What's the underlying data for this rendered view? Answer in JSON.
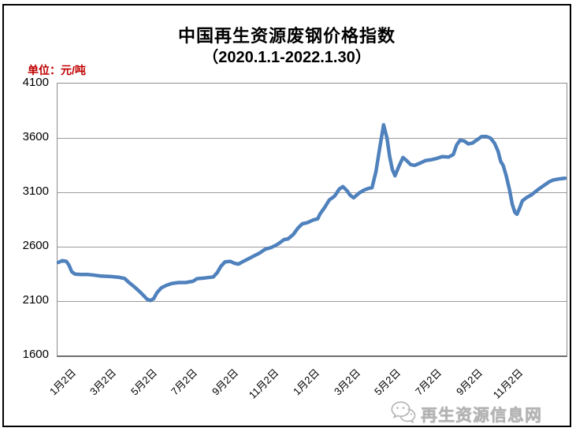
{
  "page": {
    "title": "中国再生资源废钢价格指数",
    "subtitle": "（2020.1.1-2022.1.30）",
    "unit_label": "单位：元/吨",
    "watermark_text": "再生资源信息网",
    "watermark_icon": "wechat-icon",
    "accent_red": "#c00000",
    "watermark_gray": "#b3b3b3"
  },
  "chart_data": {
    "type": "line",
    "title": "中国再生资源废钢价格指数",
    "subtitle": "（2020.1.1-2022.1.30）",
    "ylabel": "元/吨",
    "ylim": [
      1600,
      4100
    ],
    "y_ticks": [
      4100,
      3600,
      3100,
      2600,
      2100,
      1600
    ],
    "x_ticks": [
      {
        "label": "1月2日",
        "month": 0
      },
      {
        "label": "3月2日",
        "month": 2
      },
      {
        "label": "5月2日",
        "month": 4
      },
      {
        "label": "7月2日",
        "month": 6
      },
      {
        "label": "9月2日",
        "month": 8
      },
      {
        "label": "11月2日",
        "month": 10
      },
      {
        "label": "1月2日",
        "month": 12
      },
      {
        "label": "3月2日",
        "month": 14
      },
      {
        "label": "5月2日",
        "month": 16
      },
      {
        "label": "7月2日",
        "month": 18
      },
      {
        "label": "9月2日",
        "month": 20
      },
      {
        "label": "11月2日",
        "month": 22
      }
    ],
    "grid": "horizontal",
    "legend": "none",
    "line_color": "#4F81BD",
    "line_width": 4.5,
    "series": [
      {
        "name": "废钢价格指数",
        "points": [
          {
            "date": "2020-01-02",
            "value": 2455
          },
          {
            "date": "2020-01-08",
            "value": 2472
          },
          {
            "date": "2020-01-14",
            "value": 2465
          },
          {
            "date": "2020-01-18",
            "value": 2430
          },
          {
            "date": "2020-01-22",
            "value": 2370
          },
          {
            "date": "2020-01-27",
            "value": 2348
          },
          {
            "date": "2020-02-05",
            "value": 2345
          },
          {
            "date": "2020-02-15",
            "value": 2345
          },
          {
            "date": "2020-02-26",
            "value": 2338
          },
          {
            "date": "2020-03-05",
            "value": 2330
          },
          {
            "date": "2020-03-20",
            "value": 2325
          },
          {
            "date": "2020-04-02",
            "value": 2318
          },
          {
            "date": "2020-04-10",
            "value": 2308
          },
          {
            "date": "2020-04-17",
            "value": 2268
          },
          {
            "date": "2020-04-25",
            "value": 2228
          },
          {
            "date": "2020-05-02",
            "value": 2188
          },
          {
            "date": "2020-05-08",
            "value": 2150
          },
          {
            "date": "2020-05-13",
            "value": 2118
          },
          {
            "date": "2020-05-18",
            "value": 2105
          },
          {
            "date": "2020-05-23",
            "value": 2122
          },
          {
            "date": "2020-05-28",
            "value": 2178
          },
          {
            "date": "2020-06-04",
            "value": 2222
          },
          {
            "date": "2020-06-12",
            "value": 2246
          },
          {
            "date": "2020-06-20",
            "value": 2262
          },
          {
            "date": "2020-06-30",
            "value": 2270
          },
          {
            "date": "2020-07-10",
            "value": 2270
          },
          {
            "date": "2020-07-21",
            "value": 2282
          },
          {
            "date": "2020-07-27",
            "value": 2306
          },
          {
            "date": "2020-08-08",
            "value": 2312
          },
          {
            "date": "2020-08-21",
            "value": 2322
          },
          {
            "date": "2020-08-27",
            "value": 2362
          },
          {
            "date": "2020-09-02",
            "value": 2420
          },
          {
            "date": "2020-09-08",
            "value": 2460
          },
          {
            "date": "2020-09-16",
            "value": 2465
          },
          {
            "date": "2020-09-22",
            "value": 2448
          },
          {
            "date": "2020-09-28",
            "value": 2440
          },
          {
            "date": "2020-10-06",
            "value": 2468
          },
          {
            "date": "2020-10-13",
            "value": 2490
          },
          {
            "date": "2020-10-20",
            "value": 2512
          },
          {
            "date": "2020-10-29",
            "value": 2540
          },
          {
            "date": "2020-11-07",
            "value": 2575
          },
          {
            "date": "2020-11-16",
            "value": 2592
          },
          {
            "date": "2020-11-24",
            "value": 2615
          },
          {
            "date": "2020-11-30",
            "value": 2640
          },
          {
            "date": "2020-12-05",
            "value": 2665
          },
          {
            "date": "2020-12-11",
            "value": 2672
          },
          {
            "date": "2020-12-19",
            "value": 2712
          },
          {
            "date": "2020-12-26",
            "value": 2772
          },
          {
            "date": "2021-01-02",
            "value": 2810
          },
          {
            "date": "2021-01-10",
            "value": 2822
          },
          {
            "date": "2021-01-18",
            "value": 2845
          },
          {
            "date": "2021-01-25",
            "value": 2856
          },
          {
            "date": "2021-01-29",
            "value": 2905
          },
          {
            "date": "2021-02-05",
            "value": 2960
          },
          {
            "date": "2021-02-12",
            "value": 3030
          },
          {
            "date": "2021-02-20",
            "value": 3065
          },
          {
            "date": "2021-02-27",
            "value": 3130
          },
          {
            "date": "2021-03-02",
            "value": 3152
          },
          {
            "date": "2021-03-08",
            "value": 3115
          },
          {
            "date": "2021-03-13",
            "value": 3072
          },
          {
            "date": "2021-03-18",
            "value": 3050
          },
          {
            "date": "2021-03-26",
            "value": 3092
          },
          {
            "date": "2021-04-03",
            "value": 3120
          },
          {
            "date": "2021-04-10",
            "value": 3136
          },
          {
            "date": "2021-04-15",
            "value": 3142
          },
          {
            "date": "2021-04-21",
            "value": 3290
          },
          {
            "date": "2021-04-27",
            "value": 3520
          },
          {
            "date": "2021-05-02",
            "value": 3720
          },
          {
            "date": "2021-05-07",
            "value": 3600
          },
          {
            "date": "2021-05-11",
            "value": 3430
          },
          {
            "date": "2021-05-15",
            "value": 3310
          },
          {
            "date": "2021-05-19",
            "value": 3252
          },
          {
            "date": "2021-05-25",
            "value": 3340
          },
          {
            "date": "2021-05-31",
            "value": 3420
          },
          {
            "date": "2021-06-06",
            "value": 3392
          },
          {
            "date": "2021-06-12",
            "value": 3355
          },
          {
            "date": "2021-06-18",
            "value": 3348
          },
          {
            "date": "2021-06-26",
            "value": 3368
          },
          {
            "date": "2021-07-04",
            "value": 3392
          },
          {
            "date": "2021-07-13",
            "value": 3400
          },
          {
            "date": "2021-07-21",
            "value": 3412
          },
          {
            "date": "2021-07-29",
            "value": 3428
          },
          {
            "date": "2021-08-08",
            "value": 3424
          },
          {
            "date": "2021-08-15",
            "value": 3448
          },
          {
            "date": "2021-08-20",
            "value": 3535
          },
          {
            "date": "2021-08-25",
            "value": 3578
          },
          {
            "date": "2021-09-01",
            "value": 3572
          },
          {
            "date": "2021-09-07",
            "value": 3545
          },
          {
            "date": "2021-09-13",
            "value": 3552
          },
          {
            "date": "2021-09-20",
            "value": 3582
          },
          {
            "date": "2021-09-27",
            "value": 3612
          },
          {
            "date": "2021-10-04",
            "value": 3612
          },
          {
            "date": "2021-10-10",
            "value": 3598
          },
          {
            "date": "2021-10-16",
            "value": 3550
          },
          {
            "date": "2021-10-21",
            "value": 3480
          },
          {
            "date": "2021-10-25",
            "value": 3385
          },
          {
            "date": "2021-10-29",
            "value": 3345
          },
          {
            "date": "2021-11-03",
            "value": 3250
          },
          {
            "date": "2021-11-08",
            "value": 3120
          },
          {
            "date": "2021-11-12",
            "value": 2990
          },
          {
            "date": "2021-11-16",
            "value": 2915
          },
          {
            "date": "2021-11-19",
            "value": 2898
          },
          {
            "date": "2021-11-23",
            "value": 2955
          },
          {
            "date": "2021-11-27",
            "value": 3022
          },
          {
            "date": "2021-12-03",
            "value": 3052
          },
          {
            "date": "2021-12-10",
            "value": 3075
          },
          {
            "date": "2021-12-17",
            "value": 3110
          },
          {
            "date": "2021-12-24",
            "value": 3142
          },
          {
            "date": "2021-12-31",
            "value": 3172
          },
          {
            "date": "2022-01-06",
            "value": 3195
          },
          {
            "date": "2022-01-12",
            "value": 3212
          },
          {
            "date": "2022-01-20",
            "value": 3222
          },
          {
            "date": "2022-01-30",
            "value": 3230
          }
        ]
      }
    ]
  }
}
